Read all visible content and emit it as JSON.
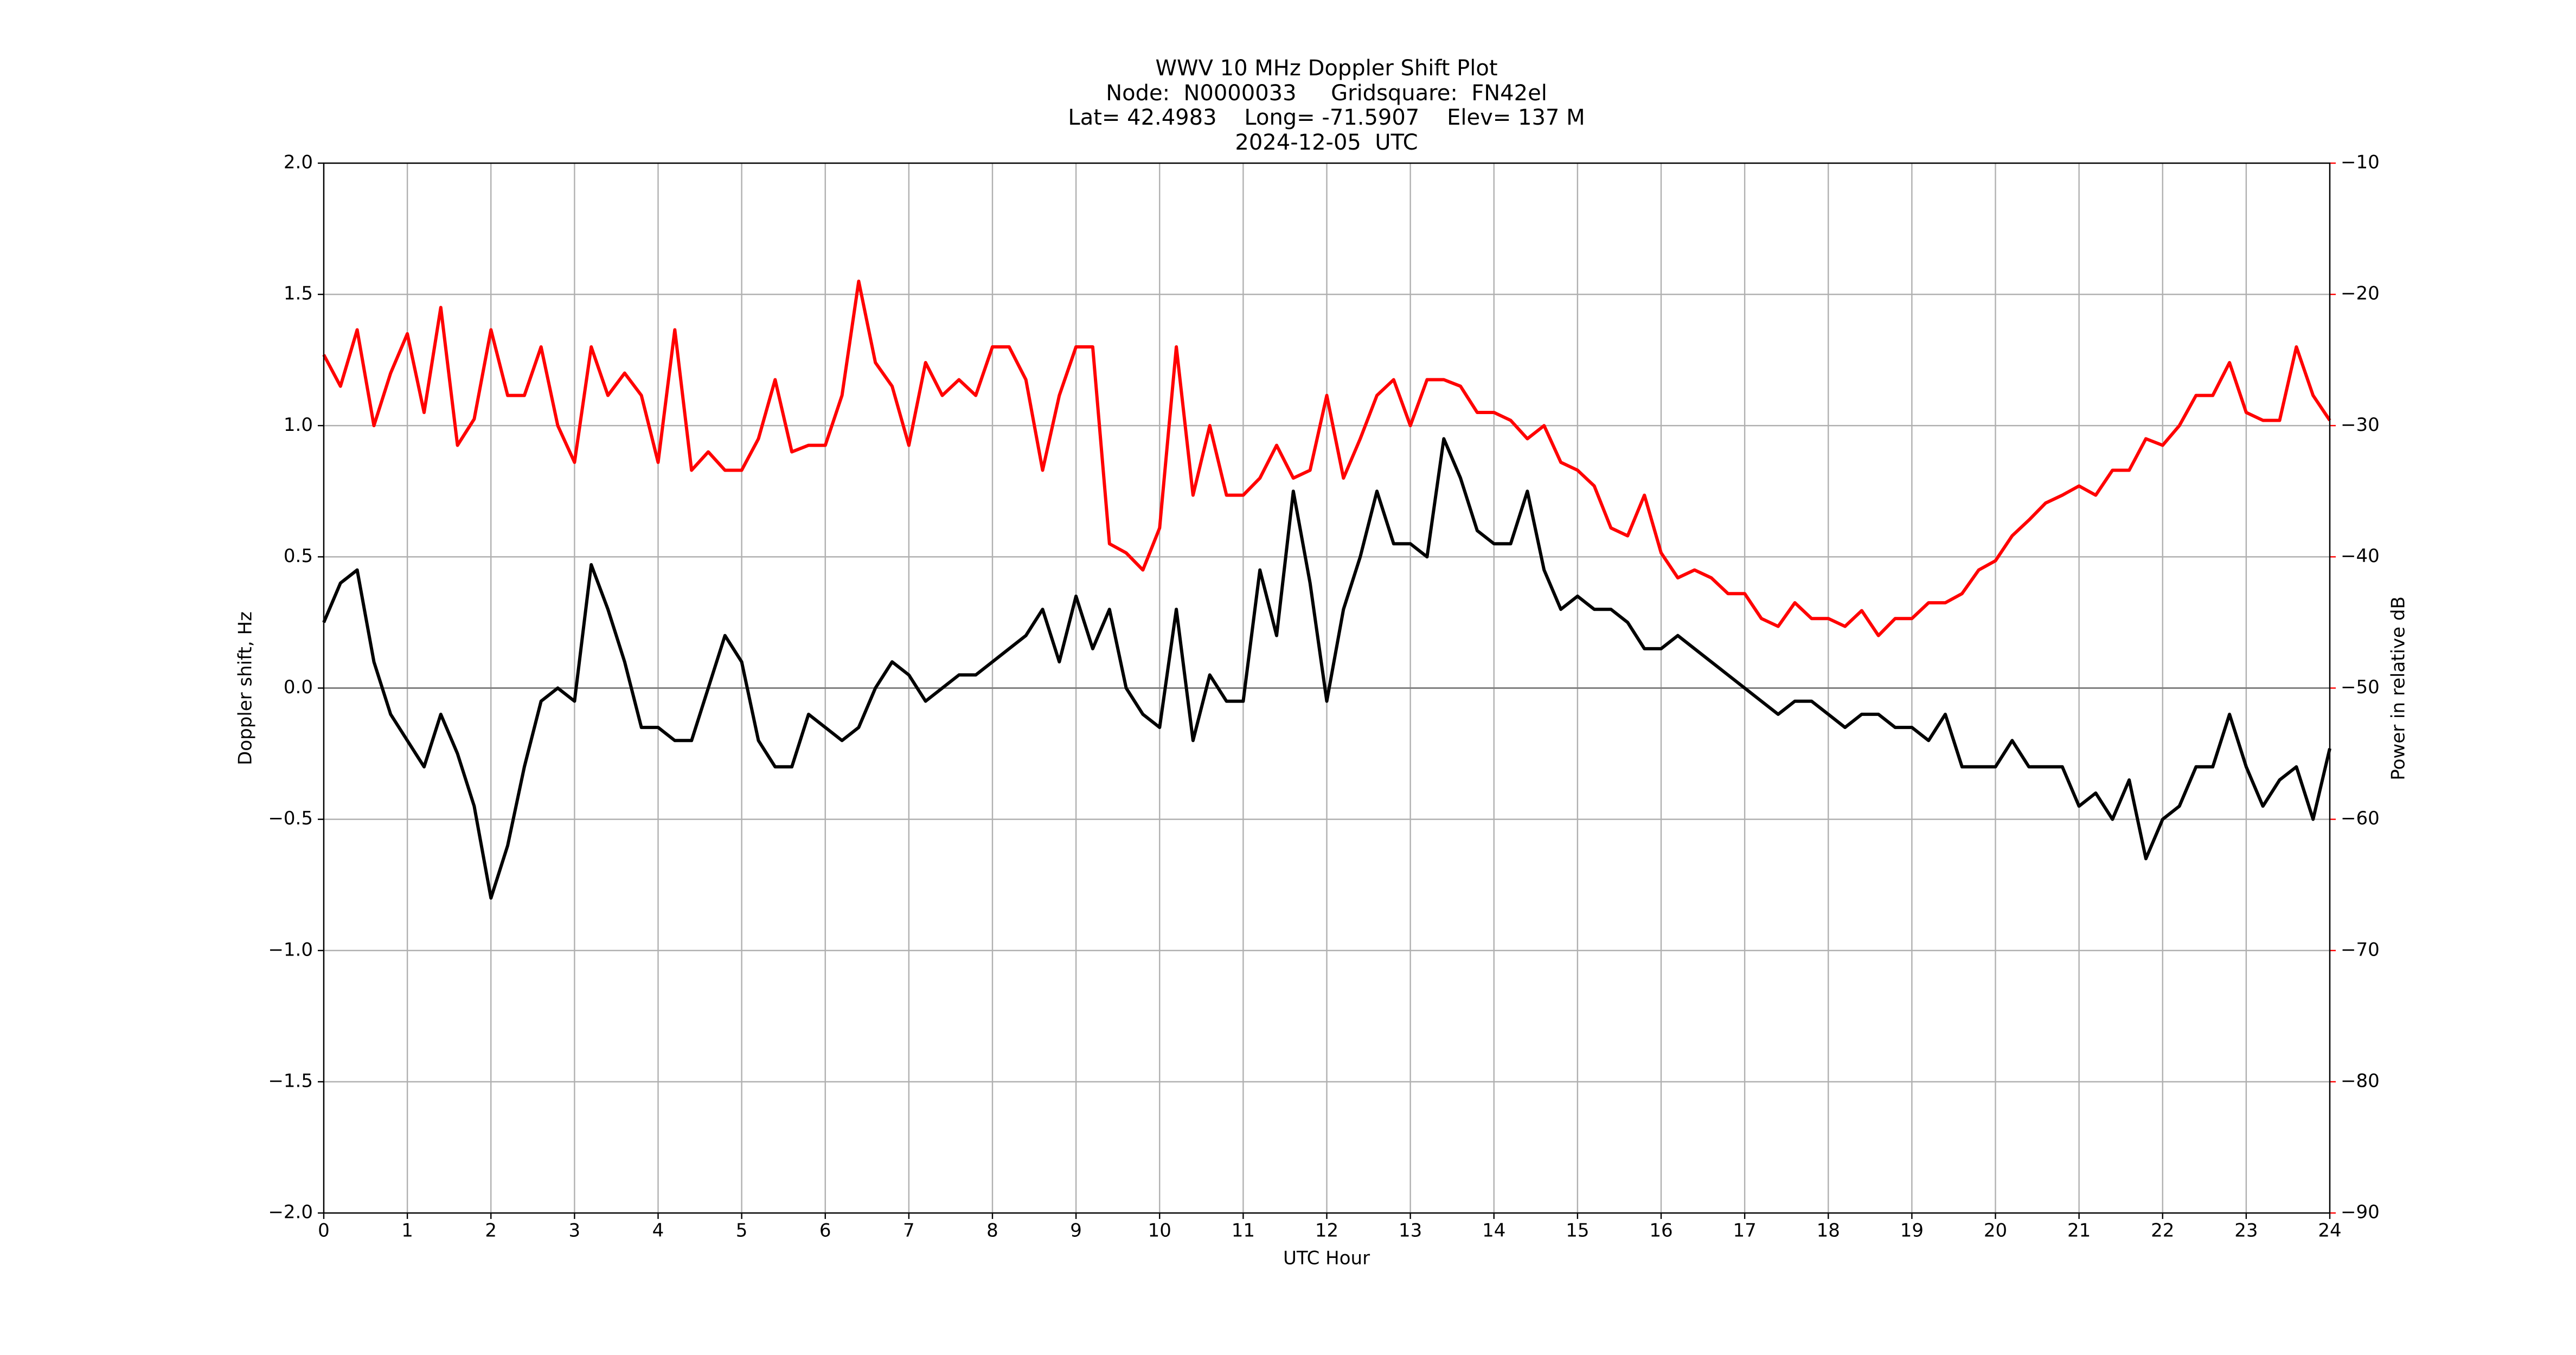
{
  "chart_data": {
    "type": "line",
    "title": [
      "WWV 10 MHz Doppler Shift Plot",
      "Node:  N0000033     Gridsquare:  FN42el",
      "Lat= 42.4983    Long= -71.5907    Elev= 137 M",
      "2024-12-05  UTC"
    ],
    "xlabel": "UTC Hour",
    "ylabel": "Doppler shift, Hz",
    "y2label": "Power in relative dB",
    "x": [
      0,
      0.2,
      0.4,
      0.6,
      0.8,
      1,
      1.2,
      1.4,
      1.6,
      1.8,
      2,
      2.2,
      2.4,
      2.6,
      2.8,
      3,
      3.2,
      3.4,
      3.6,
      3.8,
      4,
      4.2,
      4.4,
      4.6,
      4.8,
      5,
      5.2,
      5.4,
      5.6,
      5.8,
      6,
      6.2,
      6.4,
      6.6,
      6.8,
      7,
      7.2,
      7.4,
      7.6,
      7.8,
      8,
      8.2,
      8.4,
      8.6,
      8.8,
      9,
      9.2,
      9.4,
      9.6,
      9.8,
      10,
      10.2,
      10.4,
      10.6,
      10.8,
      11,
      11.2,
      11.4,
      11.6,
      11.8,
      12,
      12.2,
      12.4,
      12.6,
      12.8,
      13,
      13.2,
      13.4,
      13.6,
      13.8,
      14,
      14.2,
      14.4,
      14.6,
      14.8,
      15,
      15.2,
      15.4,
      15.6,
      15.8,
      16,
      16.2,
      16.4,
      16.6,
      16.8,
      17,
      17.2,
      17.4,
      17.6,
      17.8,
      18,
      18.2,
      18.4,
      18.6,
      18.8,
      19,
      19.2,
      19.4,
      19.6,
      19.8,
      20,
      20.2,
      20.4,
      20.6,
      20.8,
      21,
      21.2,
      21.4,
      21.6,
      21.8,
      22,
      22.2,
      22.4,
      22.6,
      22.8,
      23,
      23.2,
      23.4,
      23.6,
      23.8,
      24
    ],
    "series": [
      {
        "name": "Doppler shift",
        "color": "#000000",
        "axis": "y",
        "values": [
          0.25,
          0.4,
          0.45,
          0.1,
          -0.1,
          -0.2,
          -0.3,
          -0.1,
          -0.25,
          -0.45,
          -0.8,
          -0.6,
          -0.3,
          -0.05,
          0,
          -0.05,
          0.47,
          0.3,
          0.1,
          -0.15,
          -0.15,
          -0.2,
          -0.2,
          0,
          0.2,
          0.1,
          -0.2,
          -0.3,
          -0.3,
          -0.1,
          -0.15,
          -0.2,
          -0.15,
          0,
          0.1,
          0.05,
          -0.05,
          0,
          0.05,
          0.05,
          0.1,
          0.15,
          0.2,
          0.3,
          0.1,
          0.35,
          0.15,
          0.3,
          0,
          -0.1,
          -0.15,
          0.3,
          -0.2,
          0.05,
          -0.05,
          -0.05,
          0.45,
          0.2,
          0.75,
          0.4,
          -0.05,
          0.3,
          0.5,
          0.75,
          0.55,
          0.55,
          0.5,
          0.95,
          0.8,
          0.6,
          0.55,
          0.55,
          0.75,
          0.45,
          0.3,
          0.35,
          0.3,
          0.3,
          0.25,
          0.15,
          0.15,
          0.2,
          0.15,
          0.1,
          0.05,
          0,
          -0.05,
          -0.1,
          -0.05,
          -0.05,
          -0.1,
          -0.15,
          -0.1,
          -0.1,
          -0.15,
          -0.15,
          -0.2,
          -0.1,
          -0.3,
          -0.3,
          -0.3,
          -0.2,
          -0.3,
          -0.3,
          -0.3,
          -0.45,
          -0.4,
          -0.5,
          -0.35,
          -0.65,
          -0.5,
          -0.45,
          -0.3,
          -0.3,
          -0.1,
          -0.3,
          -0.45,
          -0.35,
          -0.3,
          -0.5,
          -0.23
        ]
      },
      {
        "name": "Power",
        "color": "#ff0000",
        "axis": "y2",
        "values": [
          -24.6,
          -27,
          -22.7,
          -30,
          -26,
          -23,
          -29,
          -21,
          -31.5,
          -29.5,
          -22.7,
          -27.7,
          -27.7,
          -24,
          -30,
          -32.8,
          -24,
          -27.7,
          -26,
          -27.7,
          -32.8,
          -22.7,
          -33.4,
          -32,
          -33.4,
          -33.4,
          -31,
          -26.5,
          -32,
          -31.5,
          -31.5,
          -27.7,
          -19,
          -25.2,
          -27,
          -31.5,
          -25.2,
          -27.7,
          -26.5,
          -27.7,
          -24,
          -24,
          -26.5,
          -33.4,
          -27.7,
          -24,
          -24,
          -39,
          -39.7,
          -41,
          -37.8,
          -24,
          -35.3,
          -30,
          -35.3,
          -35.3,
          -34,
          -31.5,
          -34,
          -33.4,
          -27.7,
          -34,
          -31,
          -27.7,
          -26.5,
          -30,
          -26.5,
          -26.5,
          -27,
          -29,
          -29,
          -29.6,
          -31,
          -30,
          -32.8,
          -33.4,
          -34.6,
          -37.8,
          -38.4,
          -35.3,
          -39.7,
          -41.6,
          -41,
          -41.6,
          -42.8,
          -42.8,
          -44.7,
          -45.3,
          -43.5,
          -44.7,
          -44.7,
          -45.3,
          -44.1,
          -46,
          -44.7,
          -44.7,
          -43.5,
          -43.5,
          -42.8,
          -41,
          -40.3,
          -38.4,
          -37.2,
          -35.9,
          -35.3,
          -34.6,
          -35.3,
          -33.4,
          -33.4,
          -31,
          -31.5,
          -30,
          -27.7,
          -27.7,
          -25.2,
          -29,
          -29.6,
          -29.6,
          -24,
          -27.7,
          -29.6
        ]
      }
    ],
    "xlim": [
      0,
      24
    ],
    "xticks": [
      0,
      1,
      2,
      3,
      4,
      5,
      6,
      7,
      8,
      9,
      10,
      11,
      12,
      13,
      14,
      15,
      16,
      17,
      18,
      19,
      20,
      21,
      22,
      23,
      24
    ],
    "ylim": [
      -2,
      2
    ],
    "yticks": [
      {
        "value": -2,
        "label": "−2.0"
      },
      {
        "value": -1.5,
        "label": "−1.5"
      },
      {
        "value": -1,
        "label": "−1.0"
      },
      {
        "value": -0.5,
        "label": "−0.5"
      },
      {
        "value": 0,
        "label": "0.0"
      },
      {
        "value": 0.5,
        "label": "0.5"
      },
      {
        "value": 1,
        "label": "1.0"
      },
      {
        "value": 1.5,
        "label": "1.5"
      },
      {
        "value": 2,
        "label": "2.0"
      }
    ],
    "y2lim": [
      -90,
      -10
    ],
    "y2ticks": [
      {
        "value": -90,
        "label": "−90"
      },
      {
        "value": -80,
        "label": "−80"
      },
      {
        "value": -70,
        "label": "−70"
      },
      {
        "value": -60,
        "label": "−60"
      },
      {
        "value": -50,
        "label": "−50"
      },
      {
        "value": -40,
        "label": "−40"
      },
      {
        "value": -30,
        "label": "−30"
      },
      {
        "value": -20,
        "label": "−20"
      },
      {
        "value": -10,
        "label": "−10"
      }
    ],
    "y2color": "#ff0000",
    "grid": true,
    "zero_line": true
  }
}
